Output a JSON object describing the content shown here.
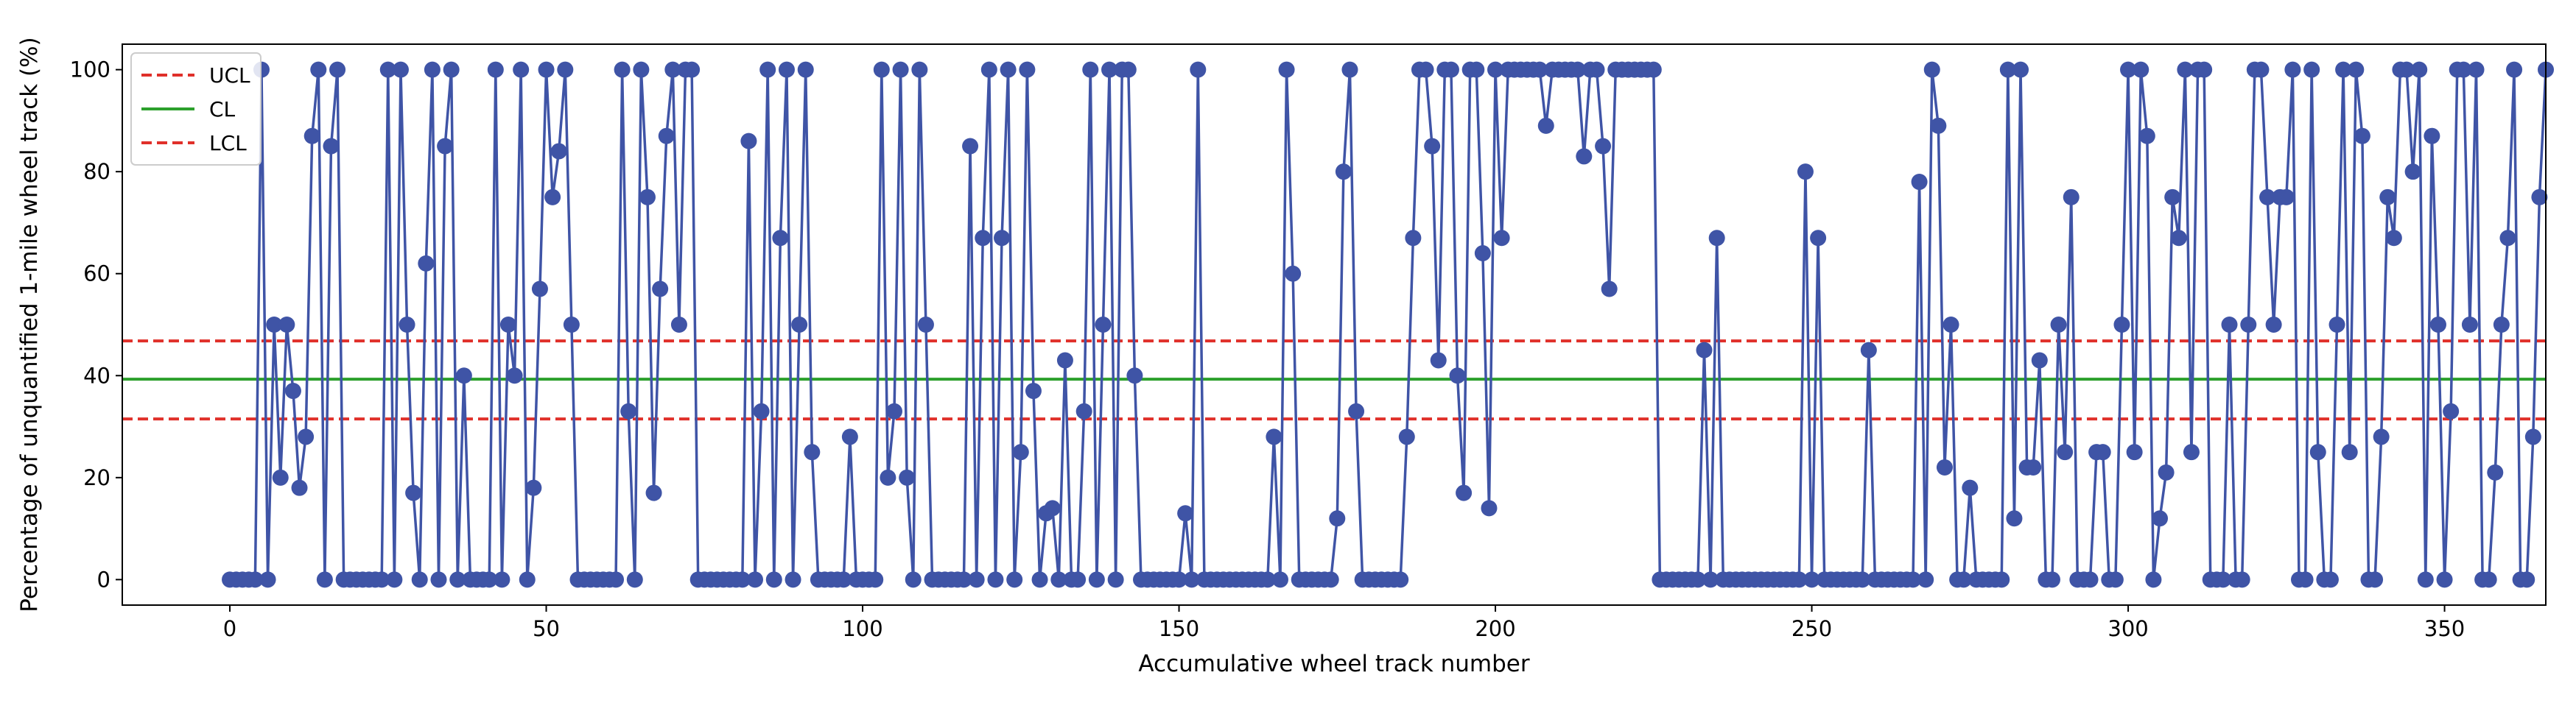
{
  "chart_data": {
    "type": "line",
    "xlabel": "Accumulative wheel track number",
    "ylabel": "Percentage of unquantified 1-mile wheel track (%)",
    "xlim": [
      -17,
      366
    ],
    "ylim": [
      -5,
      105
    ],
    "xticks": [
      0,
      50,
      100,
      150,
      200,
      250,
      300,
      350
    ],
    "yticks": [
      0,
      20,
      40,
      60,
      80,
      100
    ],
    "grid": false,
    "legend_position": "upper-left",
    "colors": {
      "series": "#3f54a6",
      "ucl": "#e0302a",
      "cl": "#2ca02c",
      "lcl": "#e0302a"
    },
    "reference_lines": [
      {
        "name": "UCL",
        "y": 46.8,
        "style": "dashed",
        "color": "#e0302a"
      },
      {
        "name": "CL",
        "y": 39.3,
        "style": "solid",
        "color": "#2ca02c"
      },
      {
        "name": "LCL",
        "y": 31.5,
        "style": "dashed",
        "color": "#e0302a"
      }
    ],
    "series": [
      {
        "values": [
          0,
          0,
          0,
          0,
          0,
          100,
          0,
          50,
          20,
          50,
          37,
          18,
          28,
          87,
          100,
          0,
          85,
          100,
          0,
          0,
          0,
          0,
          0,
          0,
          0,
          100,
          0,
          100,
          50,
          17,
          0,
          62,
          100,
          0,
          85,
          100,
          0,
          40,
          0,
          0,
          0,
          0,
          100,
          0,
          50,
          40,
          100,
          0,
          18,
          57,
          100,
          75,
          84,
          100,
          50,
          0,
          0,
          0,
          0,
          0,
          0,
          0,
          100,
          33,
          0,
          100,
          75,
          17,
          57,
          87,
          100,
          50,
          100,
          100,
          0,
          0,
          0,
          0,
          0,
          0,
          0,
          0,
          86,
          0,
          33,
          100,
          0,
          67,
          100,
          0,
          50,
          100,
          25,
          0,
          0,
          0,
          0,
          0,
          28,
          0,
          0,
          0,
          0,
          100,
          20,
          33,
          100,
          20,
          0,
          100,
          50,
          0,
          0,
          0,
          0,
          0,
          0,
          85,
          0,
          67,
          100,
          0,
          67,
          100,
          0,
          25,
          100,
          37,
          0,
          13,
          14,
          0,
          43,
          0,
          0,
          33,
          100,
          0,
          50,
          100,
          0,
          100,
          100,
          40,
          0,
          0,
          0,
          0,
          0,
          0,
          0,
          13,
          0,
          100,
          0,
          0,
          0,
          0,
          0,
          0,
          0,
          0,
          0,
          0,
          0,
          28,
          0,
          100,
          60,
          0,
          0,
          0,
          0,
          0,
          0,
          12,
          80,
          100,
          33,
          0,
          0,
          0,
          0,
          0,
          0,
          0,
          28,
          67,
          100,
          100,
          85,
          43,
          100,
          100,
          40,
          17,
          100,
          100,
          64,
          14,
          100,
          67,
          100,
          100,
          100,
          100,
          100,
          100,
          89,
          100,
          100,
          100,
          100,
          100,
          83,
          100,
          100,
          85,
          57,
          100,
          100,
          100,
          100,
          100,
          100,
          100,
          0,
          0,
          0,
          0,
          0,
          0,
          0,
          45,
          0,
          67,
          0,
          0,
          0,
          0,
          0,
          0,
          0,
          0,
          0,
          0,
          0,
          0,
          0,
          80,
          0,
          67,
          0,
          0,
          0,
          0,
          0,
          0,
          0,
          45,
          0,
          0,
          0,
          0,
          0,
          0,
          0,
          78,
          0,
          100,
          89,
          22,
          50,
          0,
          0,
          18,
          0,
          0,
          0,
          0,
          0,
          100,
          12,
          100,
          22,
          22,
          43,
          0,
          0,
          50,
          25,
          75,
          0,
          0,
          0,
          25,
          25,
          0,
          0,
          50,
          100,
          25,
          100,
          87,
          0,
          12,
          21,
          75,
          67,
          100,
          25,
          100,
          100,
          0,
          0,
          0,
          50,
          0,
          0,
          50,
          100,
          100,
          75,
          50,
          75,
          75,
          100,
          0,
          0,
          100,
          25,
          0,
          0,
          50,
          100,
          25,
          100,
          87,
          0,
          0,
          28,
          75,
          67,
          100,
          100,
          80,
          100,
          0,
          87,
          50,
          0,
          33,
          100,
          100,
          50,
          100,
          0,
          0,
          21,
          50,
          67,
          100,
          0,
          0,
          28,
          75,
          100
        ]
      }
    ]
  }
}
